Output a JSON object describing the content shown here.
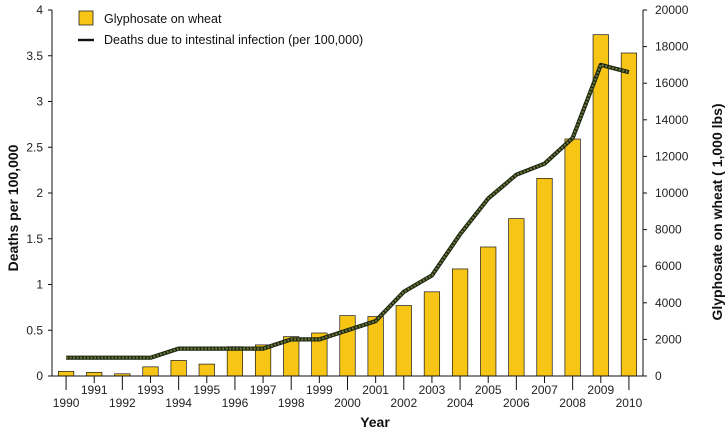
{
  "chart_data": {
    "type": "bar",
    "categories": [
      "1990",
      "1991",
      "1992",
      "1993",
      "1994",
      "1995",
      "1996",
      "1997",
      "1998",
      "1999",
      "2000",
      "2001",
      "2002",
      "2003",
      "2004",
      "2005",
      "2006",
      "2007",
      "2008",
      "2009",
      "2010"
    ],
    "series": [
      {
        "name": "Glyphosate on wheat",
        "type": "bar",
        "axis": "right",
        "color": "#f7c515",
        "values": [
          250,
          200,
          120,
          500,
          850,
          650,
          1600,
          1700,
          2150,
          2350,
          3300,
          3250,
          3850,
          4600,
          5850,
          7050,
          8600,
          10800,
          12950,
          18650,
          17650
        ]
      },
      {
        "name": "Deaths due to intestinal infection (per 100,000)",
        "type": "line",
        "axis": "left",
        "color": "#3a4a1f",
        "values": [
          0.2,
          0.2,
          0.2,
          0.2,
          0.3,
          0.3,
          0.3,
          0.3,
          0.4,
          0.4,
          0.5,
          0.6,
          0.92,
          1.1,
          1.55,
          1.94,
          2.2,
          2.32,
          2.6,
          3.4,
          3.32
        ]
      }
    ],
    "xlabel": "Year",
    "ylabel_left": "Deaths per 100,000",
    "ylabel_right": "Glyphosate on wheat ( 1,000 lbs)",
    "ylim_left": [
      0,
      4
    ],
    "ylim_right": [
      0,
      20000
    ],
    "yticks_left": [
      "0",
      "0.5",
      "1",
      "1.5",
      "2",
      "2.5",
      "3",
      "3.5",
      "4"
    ],
    "yticks_right": [
      "0",
      "2000",
      "4000",
      "6000",
      "8000",
      "10000",
      "12000",
      "14000",
      "16000",
      "18000",
      "20000"
    ],
    "grid": false,
    "legend_position": "top-left"
  }
}
